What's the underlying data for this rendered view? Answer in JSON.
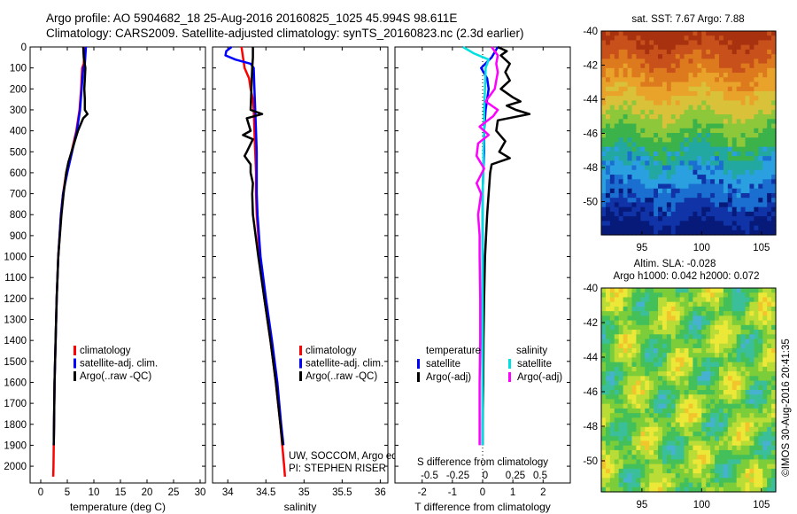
{
  "header": {
    "line1": "Argo profile: AO 5904682_18 25-Aug-2016 20160825_1025 45.994S 98.611E",
    "line2": "Climatology: CARS2009. Satellite-adjusted climatology: synTS_20160823.nc (2.3d earlier)"
  },
  "chart_data": [
    {
      "type": "line",
      "panel": "temperature",
      "xlabel": "temperature (deg C)",
      "xlim": [
        -2,
        31
      ],
      "xticks": [
        0,
        5,
        10,
        15,
        20,
        25,
        30
      ],
      "ylim": [
        2080,
        0
      ],
      "yticks": [
        0,
        100,
        200,
        300,
        400,
        500,
        600,
        700,
        800,
        900,
        1000,
        1100,
        1200,
        1300,
        1400,
        1500,
        1600,
        1700,
        1800,
        1900,
        2000
      ],
      "series": [
        {
          "name": "climatology",
          "color": "#ff0000",
          "depth": [
            0,
            80,
            100,
            200,
            300,
            400,
            500,
            600,
            700,
            800,
            1000,
            1200,
            1400,
            1600,
            1800,
            2000,
            2050
          ],
          "values": [
            8.2,
            8.1,
            7.8,
            7.6,
            7.3,
            6.7,
            5.8,
            4.8,
            4.2,
            3.8,
            3.3,
            3.0,
            2.8,
            2.6,
            2.5,
            2.4,
            2.35
          ]
        },
        {
          "name": "satellite-adj. clim.",
          "color": "#0000ff",
          "depth": [
            0,
            80,
            100,
            200,
            300,
            400,
            500,
            600,
            700,
            800,
            1000,
            1200,
            1400,
            1600,
            1800,
            1900
          ],
          "values": [
            8.5,
            8.3,
            8.0,
            7.7,
            7.4,
            6.8,
            5.9,
            5.0,
            4.2,
            3.8,
            3.3,
            3.0,
            2.8,
            2.6,
            2.5,
            2.45
          ]
        },
        {
          "name": "Argo(..raw -QC)",
          "color": "#000000",
          "depth": [
            0,
            50,
            100,
            150,
            200,
            250,
            300,
            320,
            340,
            400,
            450,
            500,
            550,
            600,
            700,
            800,
            1000,
            1200,
            1400,
            1600,
            1800,
            1900
          ],
          "values": [
            8.0,
            8.1,
            8.4,
            8.3,
            8.2,
            8.3,
            8.3,
            8.8,
            8.0,
            7.0,
            6.4,
            5.8,
            5.2,
            4.8,
            4.3,
            3.9,
            3.3,
            3.0,
            2.8,
            2.6,
            2.5,
            2.45
          ]
        }
      ],
      "legend": [
        "climatology",
        "satellite-adj. clim.",
        "Argo(..raw -QC)"
      ]
    },
    {
      "type": "line",
      "panel": "salinity",
      "xlabel": "salinity",
      "xlim": [
        33.8,
        36.1
      ],
      "xticks": [
        34,
        34.5,
        35,
        35.5,
        36
      ],
      "ylim": [
        2080,
        0
      ],
      "series": [
        {
          "name": "climatology",
          "color": "#ff0000",
          "depth": [
            0,
            100,
            150,
            200,
            250,
            300,
            400,
            500,
            600,
            700,
            800,
            1000,
            1200,
            1400,
            1600,
            1800,
            2000,
            2050
          ],
          "values": [
            34.18,
            34.22,
            34.28,
            34.3,
            34.33,
            34.34,
            34.35,
            34.36,
            34.37,
            34.37,
            34.38,
            34.42,
            34.48,
            34.56,
            34.63,
            34.69,
            34.74,
            34.75
          ]
        },
        {
          "name": "satellite-adj. clim.",
          "color": "#0000ff",
          "depth": [
            0,
            20,
            40,
            60,
            80,
            100,
            200,
            300,
            400,
            500,
            600,
            700,
            800,
            1000,
            1200,
            1400,
            1600,
            1800,
            1900
          ],
          "values": [
            34.05,
            33.98,
            33.97,
            34.1,
            34.3,
            34.34,
            34.35,
            34.36,
            34.37,
            34.38,
            34.38,
            34.38,
            34.39,
            34.43,
            34.5,
            34.58,
            34.65,
            34.7,
            34.73
          ]
        },
        {
          "name": "Argo(..raw -QC)",
          "color": "#000000",
          "depth": [
            0,
            50,
            100,
            200,
            300,
            320,
            340,
            400,
            420,
            440,
            500,
            520,
            560,
            600,
            650,
            700,
            800,
            1000,
            1200,
            1400,
            1600,
            1800,
            1900
          ],
          "values": [
            34.33,
            34.33,
            34.32,
            34.31,
            34.3,
            34.45,
            34.25,
            34.3,
            34.2,
            34.33,
            34.25,
            34.22,
            34.3,
            34.3,
            34.33,
            34.32,
            34.33,
            34.4,
            34.48,
            34.56,
            34.63,
            34.69,
            34.72
          ]
        }
      ],
      "legend": [
        "climatology",
        "satellite-adj. clim.",
        "Argo(..raw -QC)"
      ],
      "annotation": [
        "UW, SOCCOM, Argo equivalent",
        "PI: STEPHEN RISER"
      ]
    },
    {
      "type": "line",
      "panel": "difference",
      "xlabel": "T difference from climatology",
      "xlabel2": "S difference from climatology",
      "xlim": [
        -2.9,
        2.9
      ],
      "xticks": [
        -2,
        -1,
        0,
        1,
        2
      ],
      "xticks2": [
        "-0.5",
        "-0.25",
        "0",
        "0.25",
        "0.5"
      ],
      "ylim": [
        2080,
        0
      ],
      "series": [
        {
          "name": "temperature satellite",
          "color": "#0000ff",
          "depth": [
            0,
            50,
            100,
            150,
            200,
            300,
            400,
            500,
            600,
            700,
            800,
            1000,
            1200,
            1400,
            1600,
            1800,
            1900
          ],
          "values": [
            0.5,
            0.3,
            -0.05,
            0.15,
            0.2,
            0.1,
            0.05,
            0.05,
            0.02,
            0.0,
            0.0,
            0.0,
            0.0,
            0.0,
            0.0,
            0.0,
            0.0
          ]
        },
        {
          "name": "temperature Argo(-adj)",
          "color": "#000000",
          "depth": [
            0,
            20,
            40,
            80,
            120,
            160,
            200,
            240,
            260,
            280,
            300,
            320,
            350,
            400,
            450,
            500,
            530,
            560,
            600,
            700,
            800,
            1000,
            1200,
            1400,
            1600,
            1800,
            1900
          ],
          "values": [
            0.5,
            0.8,
            0.6,
            0.9,
            0.75,
            0.9,
            0.6,
            1.0,
            1.25,
            0.8,
            1.1,
            1.55,
            0.5,
            0.45,
            0.75,
            0.55,
            0.9,
            0.3,
            0.25,
            0.2,
            0.15,
            0.08,
            0.05,
            0.03,
            0.02,
            0.0,
            0.0
          ]
        },
        {
          "name": "salinity satellite",
          "color": "#00e0e0",
          "depth": [
            0,
            30,
            60,
            100,
            200,
            300,
            400,
            500,
            600,
            700,
            800,
            1000,
            1200,
            1400,
            1600,
            1800,
            1900
          ],
          "values": [
            -0.65,
            -0.3,
            0.2,
            0.1,
            0.08,
            0.05,
            0.05,
            0.03,
            0.02,
            0.0,
            0.0,
            0.0,
            0.0,
            0.0,
            0.0,
            0.0,
            0.0
          ]
        },
        {
          "name": "salinity Argo(-adj)",
          "color": "#ff00ff",
          "depth": [
            0,
            40,
            80,
            120,
            200,
            260,
            300,
            330,
            380,
            420,
            460,
            520,
            580,
            650,
            700,
            800,
            900,
            1000,
            1200,
            1400,
            1600,
            1800,
            1900
          ],
          "values": [
            0.3,
            0.5,
            0.45,
            0.5,
            0.4,
            0.1,
            0.5,
            0.35,
            -0.1,
            0.2,
            -0.15,
            -0.2,
            0.05,
            -0.2,
            -0.05,
            -0.15,
            -0.1,
            -0.1,
            -0.08,
            -0.08,
            -0.1,
            -0.1,
            -0.1
          ]
        }
      ],
      "legend_headers": [
        "temperature",
        "salinity"
      ],
      "legend": [
        "satellite",
        "Argo(-adj)",
        "satellite",
        "Argo(-adj)"
      ]
    }
  ],
  "maps": {
    "sst": {
      "title": "sat. SST: 7.67 Argo: 7.88",
      "yticks": [
        "-40",
        "-42",
        "-44",
        "-46",
        "-48",
        "-50"
      ],
      "xticks": [
        "95",
        "100",
        "105"
      ]
    },
    "sla": {
      "title1": "Altim. SLA: -0.028",
      "title2": "Argo h1000: 0.042 h2000: 0.072",
      "yticks": [
        "-40",
        "-42",
        "-44",
        "-46",
        "-48",
        "-50"
      ],
      "xticks": [
        "95",
        "100",
        "105"
      ]
    },
    "credit": "©IMOS 30-Aug-2016 20:41:35"
  },
  "colors": {
    "climatology": "#ff0000",
    "satellite": "#0000ff",
    "argo": "#000000",
    "sal_satellite": "#00e0e0",
    "sal_argo": "#ff00ff"
  }
}
